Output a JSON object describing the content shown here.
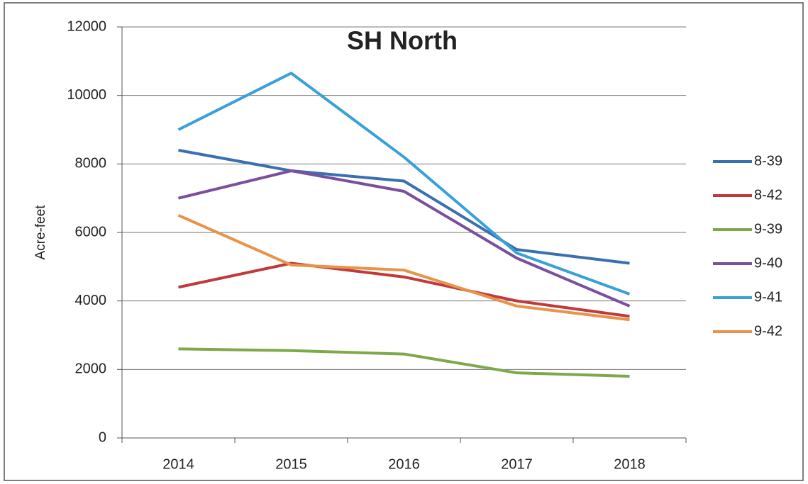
{
  "chart_data": {
    "type": "line",
    "title": "SH North",
    "y_label": "Acre-feet",
    "categories": [
      "2014",
      "2015",
      "2016",
      "2017",
      "2018"
    ],
    "series": [
      {
        "name": "8-39",
        "color": "#3a6fb0",
        "values": [
          8400,
          7800,
          7500,
          5500,
          5100
        ]
      },
      {
        "name": "8-42",
        "color": "#c0393b",
        "values": [
          4400,
          5100,
          4700,
          4000,
          3550
        ]
      },
      {
        "name": "9-39",
        "color": "#7ea84a",
        "values": [
          2600,
          2550,
          2450,
          1900,
          1800
        ]
      },
      {
        "name": "9-40",
        "color": "#7a4f9e",
        "values": [
          7000,
          7800,
          7200,
          5250,
          3850
        ]
      },
      {
        "name": "9-41",
        "color": "#3aa0d8",
        "values": [
          9000,
          10650,
          8200,
          5400,
          4200
        ]
      },
      {
        "name": "9-42",
        "color": "#e8934a",
        "values": [
          6500,
          5050,
          4900,
          3850,
          3450
        ]
      }
    ],
    "ylim": [
      0,
      12000
    ],
    "yticks": [
      0,
      2000,
      4000,
      6000,
      8000,
      10000,
      12000
    ],
    "grid": true,
    "legend": "right"
  }
}
